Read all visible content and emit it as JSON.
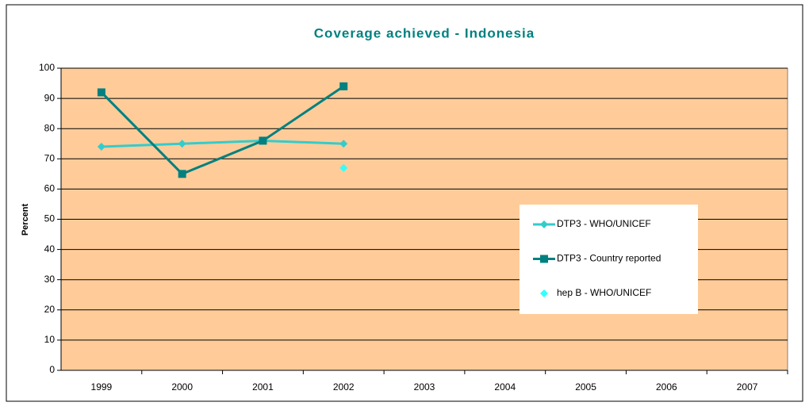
{
  "chart_data": {
    "type": "line",
    "title": "Coverage achieved - Indonesia",
    "y_label": "Percent",
    "categories": [
      "1999",
      "2000",
      "2001",
      "2002",
      "2003",
      "2004",
      "2005",
      "2006",
      "2007"
    ],
    "series": [
      {
        "name": "DTP3 - WHO/UNICEF",
        "color": "#33cccc",
        "marker": "diamond",
        "values": [
          74,
          75,
          76,
          75,
          null,
          null,
          null,
          null,
          null
        ]
      },
      {
        "name": "DTP3 - Country reported",
        "color": "#008080",
        "marker": "square",
        "values": [
          92,
          65,
          76,
          94,
          null,
          null,
          null,
          null,
          null
        ]
      },
      {
        "name": "hep B - WHO/UNICEF",
        "color": "#33ffff",
        "marker": "diamond",
        "values": [
          null,
          null,
          null,
          67,
          null,
          null,
          null,
          null,
          null
        ]
      }
    ],
    "ylim": [
      0,
      100
    ],
    "yticks": [
      0,
      10,
      20,
      30,
      40,
      50,
      60,
      70,
      80,
      90,
      100
    ],
    "grid": true,
    "background": "#ffcc99",
    "legend": "right"
  }
}
